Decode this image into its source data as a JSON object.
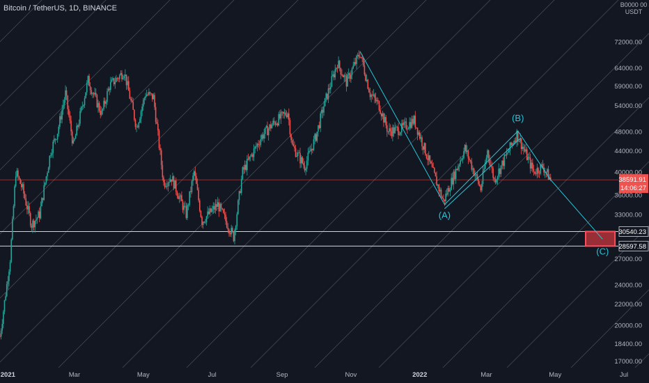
{
  "header": {
    "symbol_title": "Bitcoin / TetherUS, 1D, BINANCE",
    "currency_line1": "B0000 00",
    "currency_line2": "USDT"
  },
  "colors": {
    "background": "#131722",
    "up": "#26a69a",
    "down": "#ef5350",
    "pattern": "#26c6da",
    "target_fill": "#b2323a",
    "target_border": "#ff4d5a",
    "level_line": "#d1d4dc",
    "price_line": "#ef5350"
  },
  "chart_data": {
    "type": "candlestick",
    "title": "Bitcoin / TetherUS, 1D, BINANCE",
    "y_scale": "log",
    "ylim": [
      16500,
      87000
    ],
    "x_range": [
      "2020-12-25",
      "2022-06-26"
    ],
    "y_ticks": [
      "72000.00",
      "64000.00",
      "59000.00",
      "54000.00",
      "48000.00",
      "44000.00",
      "40000.00",
      "36000.00",
      "33000.00",
      "27000.00",
      "24000.00",
      "22000.00",
      "20000.00",
      "18400.00",
      "17000.00"
    ],
    "x_ticks": [
      {
        "label": "2021",
        "date": "2021-01-01",
        "bold": true
      },
      {
        "label": "Mar",
        "date": "2021-03-01",
        "bold": false
      },
      {
        "label": "May",
        "date": "2021-05-01",
        "bold": false
      },
      {
        "label": "Jul",
        "date": "2021-07-01",
        "bold": false
      },
      {
        "label": "Sep",
        "date": "2021-09-01",
        "bold": false
      },
      {
        "label": "Nov",
        "date": "2021-11-01",
        "bold": false
      },
      {
        "label": "2022",
        "date": "2022-01-01",
        "bold": true
      },
      {
        "label": "Mar",
        "date": "2022-03-01",
        "bold": false
      },
      {
        "label": "May",
        "date": "2022-05-01",
        "bold": false
      },
      {
        "label": "Jul",
        "date": "2022-07-01",
        "bold": false
      }
    ],
    "close_path": [
      [
        "2020-12-25",
        19000
      ],
      [
        "2021-01-03",
        27000
      ],
      [
        "2021-01-08",
        40000
      ],
      [
        "2021-01-14",
        37000
      ],
      [
        "2021-01-22",
        31500
      ],
      [
        "2021-01-29",
        33000
      ],
      [
        "2021-02-08",
        44000
      ],
      [
        "2021-02-14",
        48000
      ],
      [
        "2021-02-21",
        57000
      ],
      [
        "2021-02-28",
        45000
      ],
      [
        "2021-03-13",
        60500
      ],
      [
        "2021-03-25",
        52000
      ],
      [
        "2021-04-01",
        59000
      ],
      [
        "2021-04-14",
        63000
      ],
      [
        "2021-04-25",
        49000
      ],
      [
        "2021-05-03",
        57000
      ],
      [
        "2021-05-10",
        56000
      ],
      [
        "2021-05-19",
        38000
      ],
      [
        "2021-05-26",
        39000
      ],
      [
        "2021-06-08",
        33000
      ],
      [
        "2021-06-15",
        40000
      ],
      [
        "2021-06-22",
        32000
      ],
      [
        "2021-07-06",
        34500
      ],
      [
        "2021-07-20",
        29800
      ],
      [
        "2021-07-28",
        40000
      ],
      [
        "2021-08-14",
        47000
      ],
      [
        "2021-08-23",
        49500
      ],
      [
        "2021-09-06",
        52500
      ],
      [
        "2021-09-10",
        45000
      ],
      [
        "2021-09-21",
        41000
      ],
      [
        "2021-10-01",
        47000
      ],
      [
        "2021-10-08",
        54000
      ],
      [
        "2021-10-20",
        65500
      ],
      [
        "2021-10-28",
        60000
      ],
      [
        "2021-11-09",
        68500
      ],
      [
        "2021-11-18",
        57000
      ],
      [
        "2021-11-26",
        54000
      ],
      [
        "2021-12-04",
        48000
      ],
      [
        "2021-12-15",
        48500
      ],
      [
        "2021-12-27",
        50500
      ],
      [
        "2022-01-10",
        41500
      ],
      [
        "2022-01-22",
        35000
      ],
      [
        "2022-02-10",
        44500
      ],
      [
        "2022-02-24",
        37000
      ],
      [
        "2022-03-02",
        44000
      ],
      [
        "2022-03-08",
        38500
      ],
      [
        "2022-03-28",
        47500
      ],
      [
        "2022-04-12",
        40000
      ],
      [
        "2022-04-20",
        41000
      ],
      [
        "2022-04-27",
        38591.91
      ]
    ],
    "wave_points": [
      {
        "label": "",
        "date": "2021-11-09",
        "price": 69000
      },
      {
        "label": "(A)",
        "date": "2022-01-23",
        "price": 34500
      },
      {
        "label": "(B)",
        "date": "2022-03-29",
        "price": 48100
      },
      {
        "label": "",
        "date": "2022-04-27",
        "price": 38591.91
      },
      {
        "label": "(C)",
        "date": "2022-06-12",
        "price": 29500
      }
    ],
    "horizontal_levels": [
      {
        "price": 30540.23,
        "label": "30540.23"
      },
      {
        "price": 28597.58,
        "label": "28597.58"
      }
    ],
    "last_price": {
      "price": 38591.91,
      "label": "38591.91",
      "countdown": "14:06:27"
    },
    "target_zone": {
      "date_start": "2022-05-28",
      "date_end": "2022-06-23",
      "price_low": 28597.58,
      "price_high": 30540.23
    },
    "diagonal_channel": {
      "count": 18
    }
  }
}
